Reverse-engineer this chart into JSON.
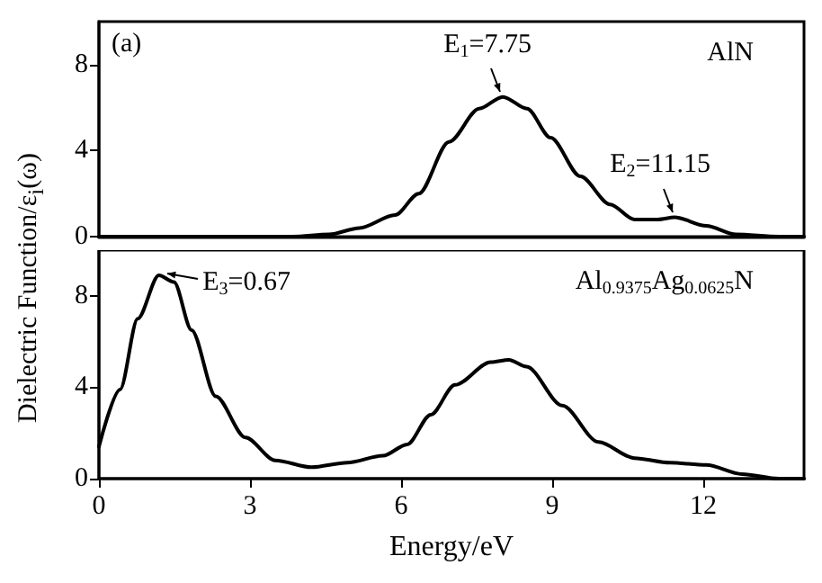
{
  "chart_data": [
    {
      "type": "line",
      "ylabel": "Dielectric Function/ε$_{i}$(ω)",
      "xlim": [
        0,
        14
      ],
      "ylim": [
        0,
        10
      ],
      "yticks": [
        0,
        4,
        8
      ],
      "tick_labels": "y",
      "grid": false,
      "legend": false,
      "marker": "none",
      "line_style": "solid",
      "annotations": [
        "(a)",
        {
          "text": "E$_{1}$=7.75",
          "x": 8.0,
          "y": 6.5
        },
        {
          "text": "E$_{2}$=11.15",
          "x": 11.43,
          "y": 0.9
        }
      ],
      "series": [
        {
          "name": "AlN",
          "color": "#000000",
          "x": [
            0,
            3.85,
            4.57,
            5.17,
            5.88,
            6.35,
            6.95,
            7.55,
            8.02,
            8.5,
            8.97,
            9.56,
            10.15,
            10.63,
            11.1,
            11.43,
            12.06,
            12.65,
            13.5,
            14
          ],
          "values": [
            0,
            0,
            0.1,
            0.4,
            1.0,
            2.0,
            4.4,
            5.95,
            6.5,
            5.95,
            4.6,
            2.8,
            1.5,
            0.8,
            0.8,
            0.9,
            0.5,
            0.1,
            0,
            0
          ]
        }
      ]
    },
    {
      "type": "line",
      "xlabel": "Energy/eV",
      "xlim": [
        0,
        14
      ],
      "ylim": [
        0,
        10
      ],
      "xticks": [
        0,
        3,
        6,
        9,
        12
      ],
      "yticks": [
        0,
        4,
        8
      ],
      "grid": false,
      "legend": false,
      "marker": "none",
      "line_style": "solid",
      "annotations": [
        {
          "text": "E$_{3}$=0.67",
          "x": 1.2,
          "y": 8.9
        }
      ],
      "series": [
        {
          "name": "Al$_{0.9375}$Ag$_{0.0625}$N",
          "color": "#000000",
          "x": [
            0,
            0.42,
            0.77,
            1.19,
            1.49,
            1.84,
            2.32,
            2.91,
            3.5,
            4.22,
            4.93,
            5.64,
            6.12,
            6.59,
            7.07,
            7.78,
            8.14,
            8.49,
            9.2,
            9.92,
            10.63,
            11.34,
            12.06,
            12.77,
            13.5,
            14
          ],
          "values": [
            1.4,
            3.9,
            7.0,
            8.9,
            8.6,
            6.5,
            3.6,
            1.8,
            0.8,
            0.5,
            0.7,
            1.0,
            1.5,
            2.8,
            4.1,
            5.1,
            5.2,
            4.9,
            3.2,
            1.6,
            0.9,
            0.7,
            0.6,
            0.2,
            0,
            0
          ]
        }
      ]
    }
  ]
}
